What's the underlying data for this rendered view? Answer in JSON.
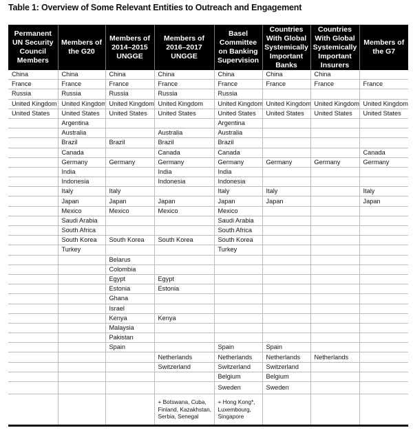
{
  "title": "Table 1: Overview of Some Relevant Entities to Outreach and Engagement",
  "table": {
    "headers": [
      "Permanent UN Security Council Members",
      "Members of the G20",
      "Members of 2014–2015 UNGGE",
      "Members of 2016–2017 UNGGE",
      "Basel Committee on Banking Supervision",
      "Countries With Global Systemically Important Banks",
      "Countries With Global Systemically Important Insurers",
      "Members of the G7"
    ],
    "rows": [
      [
        "China",
        "China",
        "China",
        "China",
        "China",
        "China",
        "China",
        ""
      ],
      [
        "France",
        "France",
        "France",
        "France",
        "France",
        "France",
        "France",
        "France"
      ],
      [
        "Russia",
        "Russia",
        "Russia",
        "Russia",
        "Russia",
        "",
        "",
        ""
      ],
      [
        "United Kingdom",
        "United Kingdom",
        "United Kingdom",
        "United Kingdom",
        "United Kingdom",
        "United Kingdom",
        "United Kingdom",
        "United Kingdom"
      ],
      [
        "United States",
        "United States",
        "United States",
        "United States",
        "United States",
        "United States",
        "United States",
        "United States"
      ],
      [
        "",
        "Argentina",
        "",
        "",
        "Argentina",
        "",
        "",
        ""
      ],
      [
        "",
        "Australia",
        "",
        "Australia",
        "Australia",
        "",
        "",
        ""
      ],
      [
        "",
        "Brazil",
        "Brazil",
        "Brazil",
        "Brazil",
        "",
        "",
        ""
      ],
      [
        "",
        "Canada",
        "",
        "Canada",
        "Canada",
        "",
        "",
        "Canada"
      ],
      [
        "",
        "Germany",
        "Germany",
        "Germany",
        "Germany",
        "Germany",
        "Germany",
        "Germany"
      ],
      [
        "",
        "India",
        "",
        "India",
        "India",
        "",
        "",
        ""
      ],
      [
        "",
        "Indonesia",
        "",
        "Indonesia",
        "Indonesia",
        "",
        "",
        ""
      ],
      [
        "",
        "Italy",
        "Italy",
        "",
        "Italy",
        "Italy",
        "",
        "Italy"
      ],
      [
        "",
        "Japan",
        "Japan",
        "Japan",
        "Japan",
        "Japan",
        "",
        "Japan"
      ],
      [
        "",
        "Mexico",
        "Mexico",
        "Mexico",
        "Mexico",
        "",
        "",
        ""
      ],
      [
        "",
        "Saudi Arabia",
        "",
        "",
        "Saudi Arabia",
        "",
        "",
        ""
      ],
      [
        "",
        "South Africa",
        "",
        "",
        "South Africa",
        "",
        "",
        ""
      ],
      [
        "",
        "South Korea",
        "South Korea",
        "South Korea",
        "South Korea",
        "",
        "",
        ""
      ],
      [
        "",
        "Turkey",
        "",
        "",
        "Turkey",
        "",
        "",
        ""
      ],
      [
        "",
        "",
        "Belarus",
        "",
        "",
        "",
        "",
        ""
      ],
      [
        "",
        "",
        "Colombia",
        "",
        "",
        "",
        "",
        ""
      ],
      [
        "",
        "",
        "Egypt",
        "Egypt",
        "",
        "",
        "",
        ""
      ],
      [
        "",
        "",
        "Estonia",
        "Estonia",
        "",
        "",
        "",
        ""
      ],
      [
        "",
        "",
        "Ghana",
        "",
        "",
        "",
        "",
        ""
      ],
      [
        "",
        "",
        "Israel",
        "",
        "",
        "",
        "",
        ""
      ],
      [
        "",
        "",
        "Kenya",
        "Kenya",
        "",
        "",
        "",
        ""
      ],
      [
        "",
        "",
        "Malaysia",
        "",
        "",
        "",
        "",
        ""
      ],
      [
        "",
        "",
        "Pakistan",
        "",
        "",
        "",
        "",
        ""
      ],
      [
        "",
        "",
        "Spain",
        "",
        "Spain",
        "Spain",
        "",
        ""
      ],
      [
        "",
        "",
        "",
        "Netherlands",
        "Netherlands",
        "Netherlands",
        "Netherlands",
        ""
      ],
      [
        "",
        "",
        "",
        "Switzerland",
        "Switzerland",
        "Switzerland",
        "",
        ""
      ],
      [
        "",
        "",
        "",
        "",
        "Belgium",
        "Belgium",
        "",
        ""
      ],
      [
        "",
        "",
        "",
        "",
        "Sweden",
        "Sweden",
        "",
        ""
      ],
      [
        "",
        "",
        "",
        "+ Botswana, Cuba, Finland, Kazakhstan, Serbia, Senegal",
        "+ Hong Kong*, Luxembourg, Singapore",
        "",
        "",
        ""
      ]
    ]
  }
}
